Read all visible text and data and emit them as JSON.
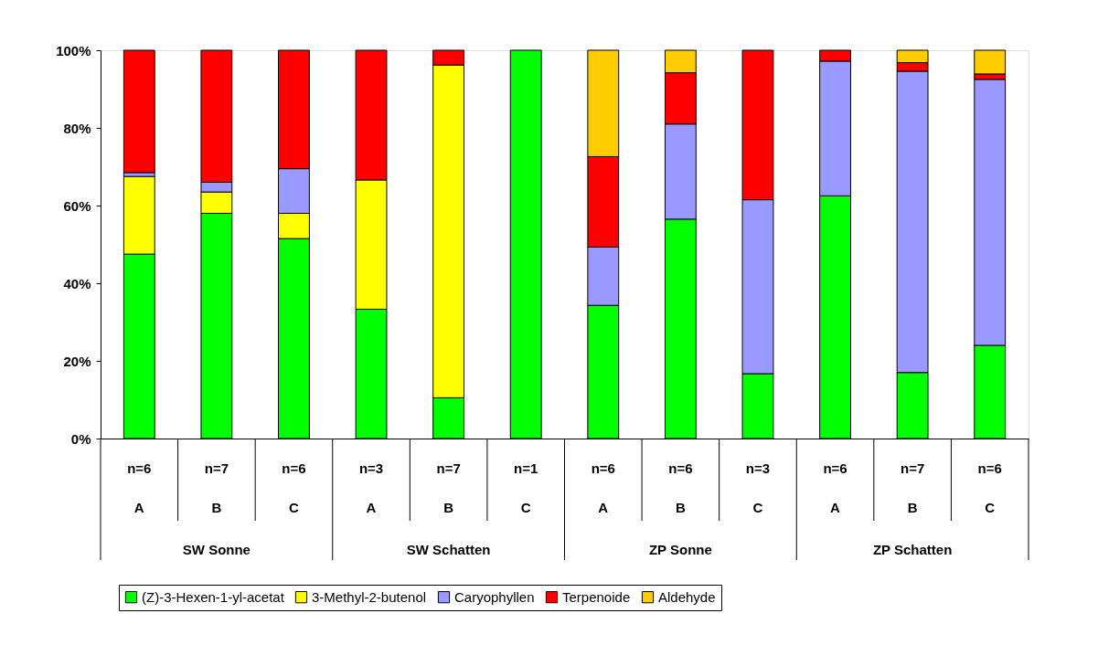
{
  "chart_data": {
    "type": "bar",
    "stacked": true,
    "categories": [
      "n=6\nA",
      "n=7\nB",
      "n=6\nC",
      "n=3\nA",
      "n=7\nB",
      "n=1\nC",
      "n=6\nA",
      "n=6\nB",
      "n=3\nC",
      "n=6\nA",
      "n=7\nB",
      "n=6\nC"
    ],
    "annotations": [
      "SW Sonne",
      "SW Schatten",
      "ZP Sonne",
      "ZP Schatten"
    ],
    "series": [
      {
        "name": "(Z)-3-Hexen-1-yl-acetat",
        "color": "#00ff00",
        "values": [
          47.5,
          58,
          51.5,
          33.3,
          10.5,
          100,
          34.3,
          56.5,
          16.7,
          62.5,
          17,
          24
        ]
      },
      {
        "name": "3-Methyl-2-butenol",
        "color": "#ffff00",
        "values": [
          20,
          5.5,
          6.5,
          33.3,
          85.7,
          null,
          null,
          null,
          null,
          null,
          null,
          null
        ]
      },
      {
        "name": "Caryophyllen",
        "color": "#9999ff",
        "values": [
          1,
          2.5,
          11.5,
          null,
          null,
          null,
          15,
          24.5,
          44.8,
          34.7,
          77.6,
          68.5
        ]
      },
      {
        "name": "Terpenoide",
        "color": "#ff0000",
        "values": [
          31.5,
          34,
          30.5,
          33.4,
          3.8,
          null,
          23.3,
          13.2,
          38.5,
          2.8,
          2.2,
          1.4
        ]
      },
      {
        "name": "Aldehyde",
        "color": "#ffcc00",
        "values": [
          null,
          null,
          null,
          null,
          null,
          null,
          27.4,
          5.8,
          null,
          null,
          3.2,
          6.1
        ]
      }
    ],
    "ylim": [
      0,
      100
    ],
    "yticks": [
      {
        "value": 0,
        "label": "0%"
      },
      {
        "value": 20,
        "label": "20%"
      },
      {
        "value": 40,
        "label": "40%"
      },
      {
        "value": 60,
        "label": "60%"
      },
      {
        "value": 80,
        "label": "80%"
      },
      {
        "value": 100,
        "label": "100%"
      }
    ],
    "grid": false,
    "legend": "bottom"
  }
}
